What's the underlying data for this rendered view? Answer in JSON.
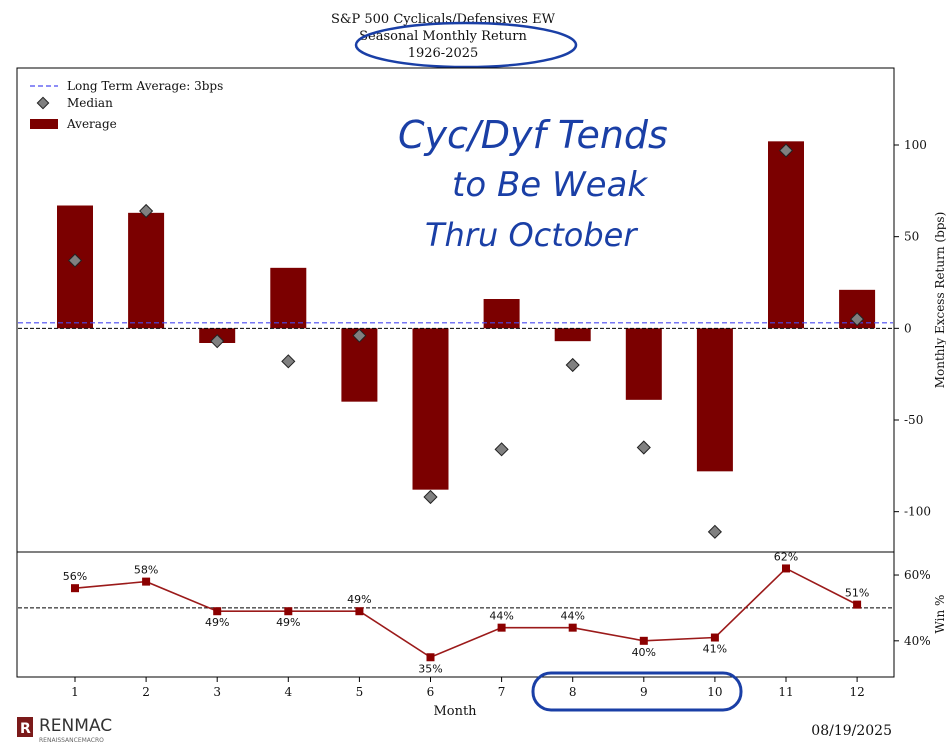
{
  "title_lines": [
    "S&P 500 Cyclicals/Defensives EW",
    "Seasonal Monthly Return",
    "1926-2025"
  ],
  "annotation": {
    "lines": [
      "Cyc/Dyf Tends",
      "to Be Weak",
      "Thru October"
    ],
    "color": "#1a3fa6"
  },
  "footer": {
    "logo_text": "RENMAC",
    "logo_subtext": "RENAISSANCEMACRO",
    "date": "08/19/2025"
  },
  "colors": {
    "bar": "#7b0000",
    "line": "#9b1a1a",
    "marker": "#8b0000",
    "avg_line": "#4a4af0",
    "median": "#808080"
  },
  "chart_data": [
    {
      "type": "bar",
      "categories": [
        "1",
        "2",
        "3",
        "4",
        "5",
        "6",
        "7",
        "8",
        "9",
        "10",
        "11",
        "12"
      ],
      "series": [
        {
          "name": "Average",
          "values": [
            67,
            63,
            -8,
            33,
            -40,
            -88,
            16,
            -7,
            -39,
            -78,
            102,
            21
          ]
        },
        {
          "name": "Median",
          "values": [
            37,
            64,
            -7,
            -18,
            -4,
            -92,
            -66,
            -20,
            -65,
            -111,
            97,
            5
          ]
        }
      ],
      "reference_lines": [
        {
          "name": "Long Term Average: 3bps",
          "value": 3
        }
      ],
      "ylabel": "Monthly Excess Return (bps)",
      "yticks": [
        100,
        50,
        0,
        -50,
        -100
      ],
      "ylim": [
        -122,
        142
      ],
      "legend": [
        "Long Term Average: 3bps",
        "Median",
        "Average"
      ],
      "legend_position": "top-left"
    },
    {
      "type": "line",
      "categories": [
        "1",
        "2",
        "3",
        "4",
        "5",
        "6",
        "7",
        "8",
        "9",
        "10",
        "11",
        "12"
      ],
      "values": [
        56,
        58,
        49,
        49,
        49,
        35,
        44,
        44,
        40,
        41,
        62,
        51
      ],
      "point_labels": [
        "56%",
        "58%",
        "49%",
        "49%",
        "49%",
        "35%",
        "44%",
        "44%",
        "40%",
        "41%",
        "62%",
        "51%"
      ],
      "reference_line": 50,
      "ylabel": "Win %",
      "yticks": [
        "60%",
        "40%"
      ],
      "ylim": [
        29,
        67
      ],
      "xlabel": "Month"
    }
  ]
}
